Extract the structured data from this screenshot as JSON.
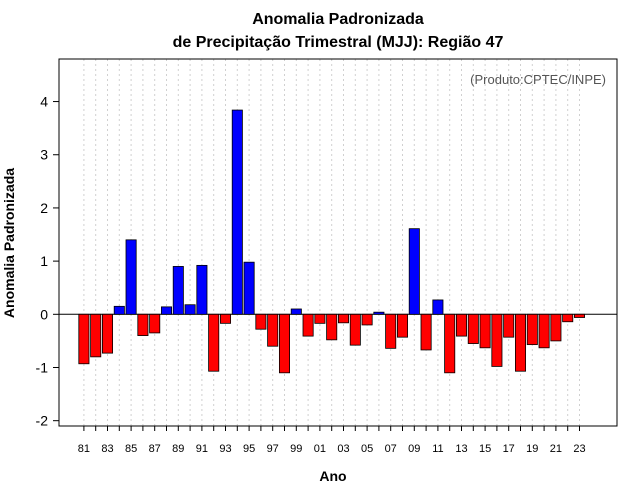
{
  "chart_data": {
    "type": "bar",
    "title_line1": "Anomalia Padronizada",
    "title_line2": "de Precipitação Trimestral (MJJ): Região 47",
    "xlabel": "Ano",
    "ylabel": "Anomalia Padronizada",
    "annotation": "(Produto:CPTEC/INPE)",
    "ylim": [
      -2.1,
      4.8
    ],
    "yticks": [
      -2,
      -1,
      0,
      1,
      2,
      3,
      4
    ],
    "ytick_labels": [
      "-2",
      "-1",
      "0",
      "1",
      "2",
      "3",
      "4"
    ],
    "grid": "vertical dotted",
    "colors": {
      "positive": "#0000ff",
      "negative": "#ff0000",
      "border": "#000000",
      "grid": "#d0d0d0"
    },
    "categories": [
      "1981",
      "1982",
      "1983",
      "1984",
      "1985",
      "1986",
      "1987",
      "1988",
      "1989",
      "1990",
      "1991",
      "1992",
      "1993",
      "1994",
      "1995",
      "1996",
      "1997",
      "1998",
      "1999",
      "2000",
      "2001",
      "2002",
      "2003",
      "2004",
      "2005",
      "2006",
      "2007",
      "2008",
      "2009",
      "2010",
      "2011",
      "2012",
      "2013",
      "2014",
      "2015",
      "2016",
      "2017",
      "2018",
      "2019",
      "2020",
      "2021",
      "2022",
      "2023"
    ],
    "xtick_labels": [
      "81",
      "83",
      "85",
      "87",
      "89",
      "91",
      "93",
      "95",
      "97",
      "99",
      "01",
      "03",
      "05",
      "07",
      "09",
      "11",
      "13",
      "15",
      "17",
      "19",
      "21",
      "23"
    ],
    "values": [
      -0.93,
      -0.8,
      -0.73,
      0.15,
      1.4,
      -0.4,
      -0.35,
      0.14,
      0.9,
      0.18,
      0.92,
      -1.07,
      -0.17,
      3.84,
      0.98,
      -0.28,
      -0.6,
      -1.1,
      0.1,
      -0.41,
      -0.17,
      -0.48,
      -0.16,
      -0.58,
      -0.2,
      0.04,
      -0.64,
      -0.43,
      1.61,
      -0.67,
      0.27,
      -1.1,
      -0.41,
      -0.55,
      -0.63,
      -0.98,
      -0.43,
      -1.07,
      -0.57,
      -0.63,
      -0.5,
      -0.14,
      -0.06
    ]
  }
}
